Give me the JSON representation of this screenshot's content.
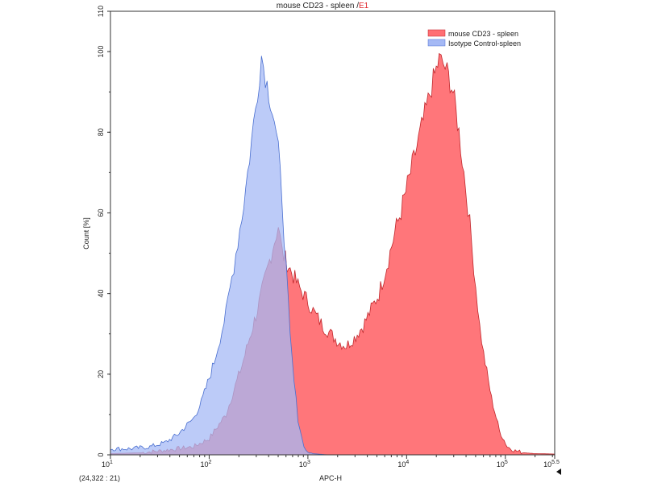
{
  "chart_data": {
    "type": "area",
    "title": "mouse CD23 - spleen",
    "title_suffix": "E1",
    "xlabel": "APC-H",
    "ylabel": "Count [%]",
    "xscale": "log10",
    "xlim_log10": [
      1,
      5.5
    ],
    "ylim": [
      0,
      110
    ],
    "x_ticks": [
      {
        "exp": 1,
        "label": "10",
        "sup": "1"
      },
      {
        "exp": 2,
        "label": "10",
        "sup": "2"
      },
      {
        "exp": 3,
        "label": "10",
        "sup": "3"
      },
      {
        "exp": 4,
        "label": "10",
        "sup": "4"
      },
      {
        "exp": 5,
        "label": "10",
        "sup": "5"
      },
      {
        "exp": 5.5,
        "label": "10",
        "sup": "5.5"
      }
    ],
    "y_ticks": [
      0,
      20,
      40,
      60,
      80,
      100,
      110
    ],
    "legend_position": "top-right",
    "series": [
      {
        "name": "mouse CD23 - spleen",
        "color": "#ff6f73",
        "stroke": "#c0262b",
        "x_log10": [
          1.0,
          1.3,
          1.51,
          1.84,
          2.0,
          2.17,
          2.33,
          2.49,
          2.58,
          2.66,
          2.7,
          2.74,
          2.82,
          2.9,
          3.0,
          3.07,
          3.15,
          3.23,
          3.31,
          3.39,
          3.47,
          3.56,
          3.64,
          3.72,
          3.8,
          3.88,
          3.96,
          4.04,
          4.12,
          4.2,
          4.27,
          4.33,
          4.37,
          4.41,
          4.47,
          4.53,
          4.58,
          4.62,
          4.66,
          4.7,
          4.74,
          4.78,
          4.86,
          4.94,
          5.02,
          5.1,
          5.19,
          5.3,
          5.5
        ],
        "y": [
          0.3,
          0.5,
          1,
          2,
          4,
          10,
          22,
          36,
          45,
          53,
          57,
          50,
          46,
          42,
          38,
          35,
          32,
          30,
          28,
          27,
          29,
          32,
          36,
          40,
          47,
          55,
          62,
          70,
          78,
          86,
          93,
          98,
          97,
          95,
          90,
          80,
          70,
          62,
          52,
          42,
          32,
          25,
          14,
          6,
          2,
          1,
          0.5,
          0.3,
          0.2
        ]
      },
      {
        "name": "Isotype Control-spleen",
        "color": "#a5b9f5",
        "stroke": "#4a6fd0",
        "x_log10": [
          1.0,
          1.2,
          1.4,
          1.55,
          1.68,
          1.76,
          1.84,
          1.92,
          2.0,
          2.05,
          2.09,
          2.13,
          2.17,
          2.21,
          2.25,
          2.29,
          2.33,
          2.37,
          2.41,
          2.45,
          2.49,
          2.53,
          2.57,
          2.62,
          2.66,
          2.7,
          2.74,
          2.78,
          2.82,
          2.86,
          2.9,
          2.94,
          2.98,
          3.05,
          3.2,
          5.5
        ],
        "y": [
          1.5,
          1.5,
          2,
          3,
          5,
          7,
          9,
          13,
          19,
          23,
          27,
          31,
          35,
          41,
          47,
          53,
          59,
          66,
          74,
          82,
          90,
          99,
          94,
          88,
          83,
          75,
          63,
          46,
          29,
          18,
          9,
          4,
          1,
          0.3,
          0,
          0
        ]
      }
    ],
    "cursor_readout": "(24,322 : 21)",
    "menu_icon": "triangle-left-icon"
  }
}
